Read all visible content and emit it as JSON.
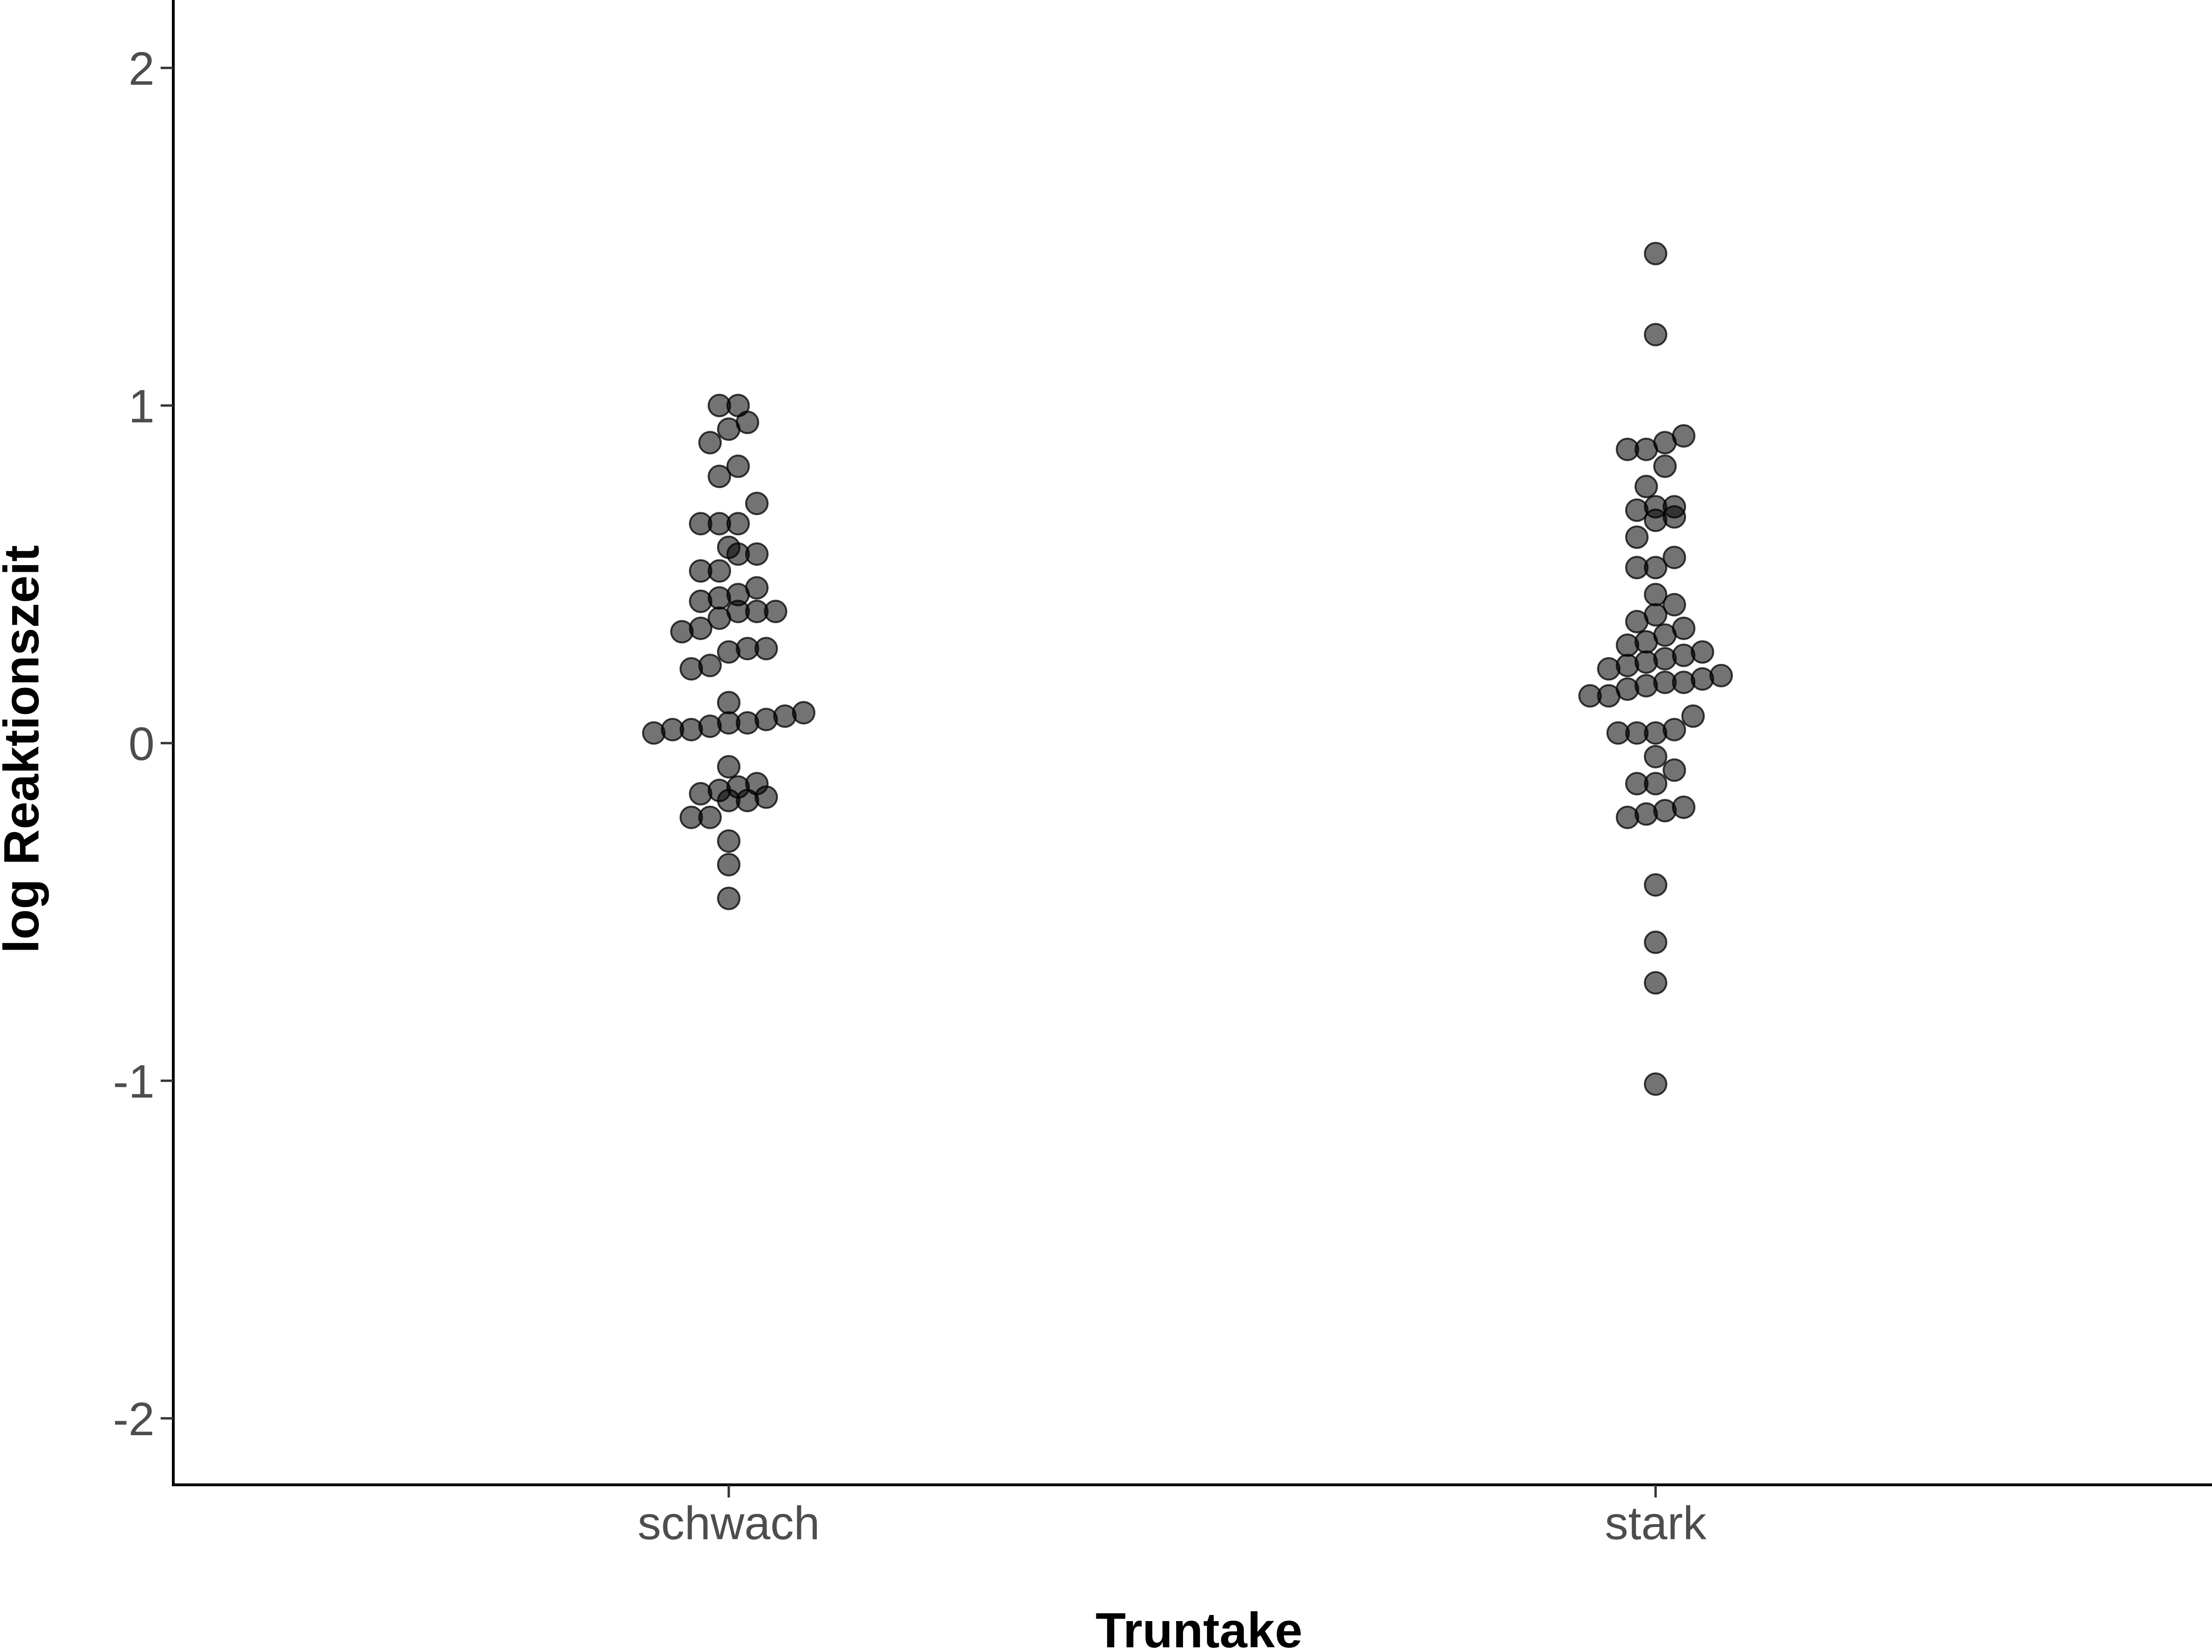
{
  "chart_data": {
    "type": "scatter",
    "subtype": "dotplot",
    "xlabel": "Truntake",
    "ylabel": "log Reaktionszeit",
    "categories": [
      "schwach",
      "stark"
    ],
    "ylim": [
      -2.2,
      2.2
    ],
    "yticks": [
      "-2",
      "-1",
      "0",
      "1",
      "2"
    ],
    "grid": false,
    "point_color": "#000000",
    "series": [
      {
        "category": "schwach",
        "values": [
          1.0,
          1.0,
          0.95,
          0.93,
          0.89,
          0.82,
          0.79,
          0.71,
          0.65,
          0.65,
          0.65,
          0.58,
          0.56,
          0.56,
          0.51,
          0.51,
          0.46,
          0.44,
          0.43,
          0.42,
          0.39,
          0.39,
          0.39,
          0.37,
          0.34,
          0.33,
          0.28,
          0.28,
          0.27,
          0.23,
          0.22,
          0.12,
          0.09,
          0.08,
          0.07,
          0.06,
          0.06,
          0.05,
          0.04,
          0.04,
          0.03,
          -0.07,
          -0.12,
          -0.13,
          -0.14,
          -0.15,
          -0.16,
          -0.17,
          -0.17,
          -0.22,
          -0.22,
          -0.29,
          -0.36,
          -0.46
        ]
      },
      {
        "category": "stark",
        "values": [
          1.45,
          1.21,
          0.91,
          0.89,
          0.87,
          0.87,
          0.82,
          0.76,
          0.7,
          0.7,
          0.69,
          0.67,
          0.66,
          0.61,
          0.55,
          0.52,
          0.52,
          0.44,
          0.41,
          0.38,
          0.36,
          0.34,
          0.32,
          0.3,
          0.29,
          0.27,
          0.26,
          0.25,
          0.24,
          0.23,
          0.22,
          0.2,
          0.19,
          0.18,
          0.18,
          0.17,
          0.16,
          0.14,
          0.14,
          0.08,
          0.04,
          0.03,
          0.03,
          0.03,
          -0.04,
          -0.08,
          -0.12,
          -0.12,
          -0.19,
          -0.2,
          -0.21,
          -0.22,
          -0.42,
          -0.59,
          -0.71,
          -1.01
        ]
      }
    ]
  }
}
